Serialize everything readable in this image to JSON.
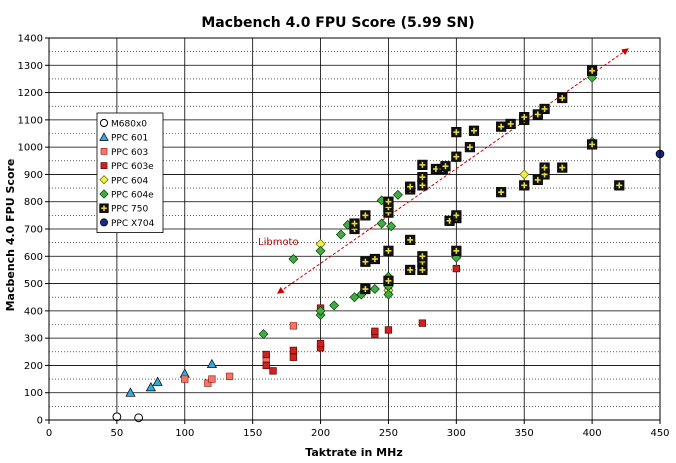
{
  "chart_data": {
    "type": "scatter",
    "title": "Macbench 4.0 FPU Score (5.99 SN)",
    "xlabel": "Taktrate in MHz",
    "ylabel": "Macbench 4.0 FPU Score",
    "xlim": [
      0,
      450
    ],
    "ylim": [
      0,
      1400
    ],
    "xticks": [
      0,
      50,
      100,
      150,
      200,
      250,
      300,
      350,
      400,
      450
    ],
    "yticks": [
      0,
      100,
      200,
      300,
      400,
      500,
      600,
      700,
      800,
      900,
      1000,
      1100,
      1200,
      1300,
      1400
    ],
    "grid": {
      "major_x": true,
      "major_y": true,
      "minor_y_dotted": true
    },
    "legend_position": "left",
    "annotation": {
      "text": "Libmoto",
      "color": "#cc0000",
      "line_from": [
        170,
        470
      ],
      "line_to": [
        425,
        1355
      ]
    },
    "series": [
      {
        "name": "M680x0",
        "marker": "circle-open",
        "color": "#ffffff",
        "edge": "#000000",
        "points": [
          [
            50,
            12
          ],
          [
            66,
            8
          ]
        ]
      },
      {
        "name": "PPC 601",
        "marker": "triangle",
        "color": "#33aadd",
        "edge": "#000000",
        "points": [
          [
            60,
            100
          ],
          [
            75,
            120
          ],
          [
            80,
            140
          ],
          [
            100,
            170
          ],
          [
            120,
            205
          ]
        ]
      },
      {
        "name": "PPC 603",
        "marker": "square",
        "color": "#ee7766",
        "edge": "#aa2222",
        "points": [
          [
            100,
            150
          ],
          [
            117,
            135
          ],
          [
            120,
            150
          ],
          [
            133,
            160
          ],
          [
            160,
            225
          ],
          [
            180,
            345
          ]
        ]
      },
      {
        "name": "PPC 603e",
        "marker": "square",
        "color": "#cc2222",
        "edge": "#660000",
        "points": [
          [
            160,
            200
          ],
          [
            160,
            240
          ],
          [
            165,
            180
          ],
          [
            180,
            230
          ],
          [
            180,
            255
          ],
          [
            200,
            265
          ],
          [
            200,
            280
          ],
          [
            200,
            410
          ],
          [
            240,
            315
          ],
          [
            240,
            325
          ],
          [
            250,
            330
          ],
          [
            250,
            480
          ],
          [
            275,
            355
          ],
          [
            300,
            555
          ]
        ]
      },
      {
        "name": "PPC 604",
        "marker": "diamond",
        "color": "#eeee44",
        "edge": "#666600",
        "points": [
          [
            200,
            645
          ],
          [
            225,
            700
          ],
          [
            250,
            475
          ],
          [
            300,
            960
          ],
          [
            350,
            900
          ]
        ]
      },
      {
        "name": "PPC 604e",
        "marker": "diamond",
        "color": "#44aa44",
        "edge": "#004400",
        "points": [
          [
            158,
            315
          ],
          [
            180,
            590
          ],
          [
            200,
            385
          ],
          [
            200,
            400
          ],
          [
            200,
            620
          ],
          [
            210,
            420
          ],
          [
            215,
            680
          ],
          [
            220,
            715
          ],
          [
            225,
            450
          ],
          [
            230,
            460
          ],
          [
            240,
            480
          ],
          [
            245,
            720
          ],
          [
            245,
            805
          ],
          [
            250,
            490
          ],
          [
            250,
            460
          ],
          [
            250,
            525
          ],
          [
            252,
            710
          ],
          [
            257,
            825
          ],
          [
            300,
            595
          ],
          [
            400,
            1020
          ],
          [
            400,
            1255
          ]
        ]
      },
      {
        "name": "PPC 750",
        "marker": "square-cross",
        "color": "#111111",
        "edge": "#e8d840",
        "points": [
          [
            225,
            700
          ],
          [
            225,
            720
          ],
          [
            233,
            480
          ],
          [
            233,
            580
          ],
          [
            233,
            750
          ],
          [
            240,
            590
          ],
          [
            250,
            510
          ],
          [
            250,
            620
          ],
          [
            250,
            760
          ],
          [
            250,
            780
          ],
          [
            250,
            800
          ],
          [
            266,
            660
          ],
          [
            266,
            845
          ],
          [
            266,
            855
          ],
          [
            266,
            550
          ],
          [
            275,
            550
          ],
          [
            275,
            580
          ],
          [
            275,
            600
          ],
          [
            275,
            860
          ],
          [
            275,
            890
          ],
          [
            275,
            935
          ],
          [
            285,
            920
          ],
          [
            290,
            920
          ],
          [
            292,
            930
          ],
          [
            295,
            730
          ],
          [
            300,
            620
          ],
          [
            300,
            740
          ],
          [
            300,
            750
          ],
          [
            300,
            965
          ],
          [
            300,
            1055
          ],
          [
            310,
            1000
          ],
          [
            313,
            1060
          ],
          [
            333,
            835
          ],
          [
            333,
            1075
          ],
          [
            340,
            1085
          ],
          [
            350,
            860
          ],
          [
            350,
            1100
          ],
          [
            350,
            1110
          ],
          [
            360,
            880
          ],
          [
            360,
            1120
          ],
          [
            365,
            900
          ],
          [
            365,
            925
          ],
          [
            365,
            1140
          ],
          [
            378,
            925
          ],
          [
            378,
            1180
          ],
          [
            400,
            1280
          ],
          [
            400,
            1010
          ],
          [
            420,
            860
          ]
        ]
      },
      {
        "name": "PPC X704",
        "marker": "circle",
        "color": "#1a2a88",
        "edge": "#000000",
        "points": [
          [
            450,
            975
          ]
        ]
      }
    ]
  }
}
